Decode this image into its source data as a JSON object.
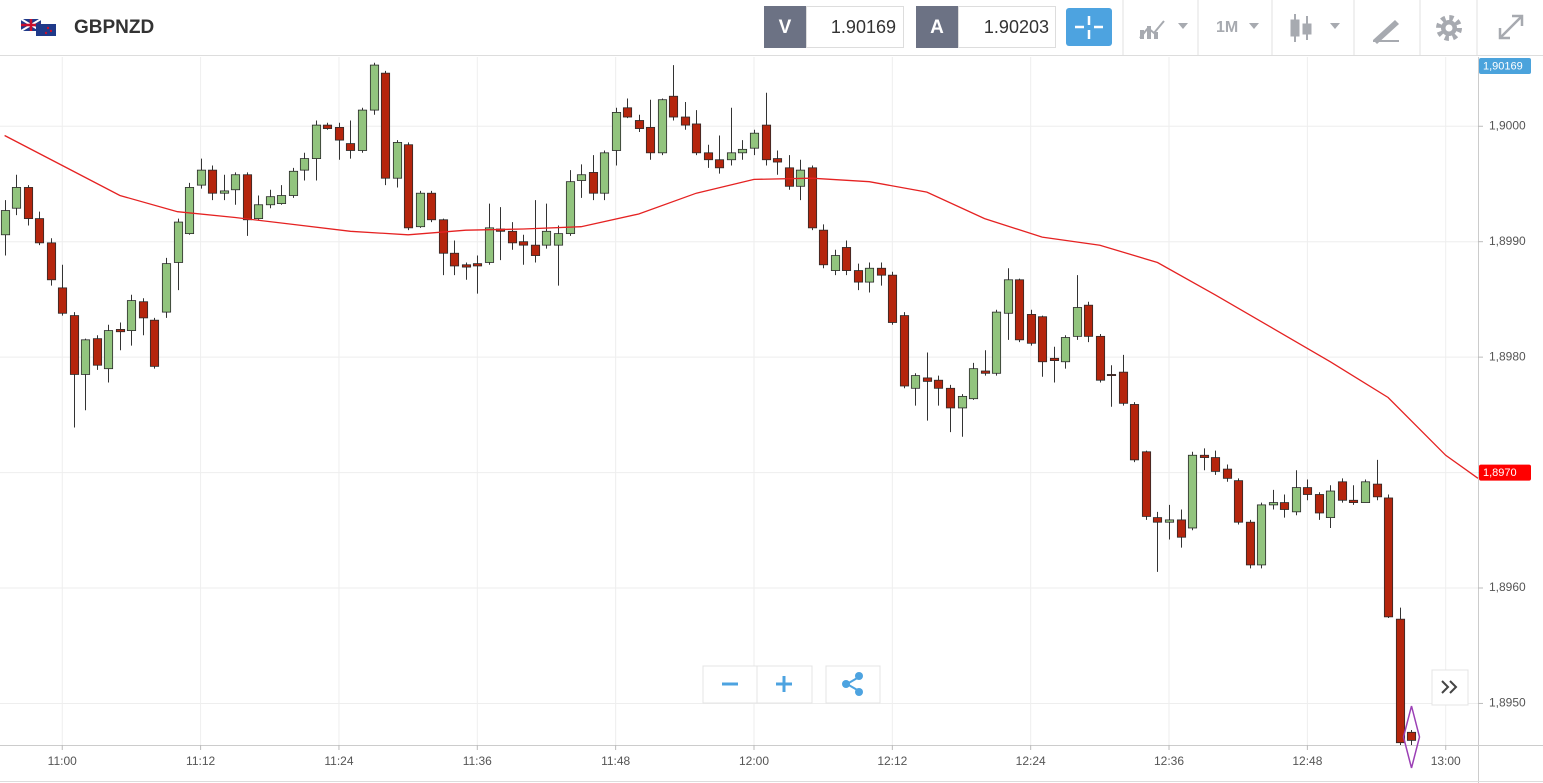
{
  "header": {
    "symbol": "GBPNZD",
    "bid_tag": "V",
    "bid": "1.90169",
    "ask_tag": "A",
    "ask": "1.90203",
    "timeframe": "1M"
  },
  "chart_data": {
    "type": "candlestick",
    "up_color": "#92c47e",
    "down_color": "#b5250d",
    "grid": true,
    "x": [
      655,
      656,
      657,
      658,
      659,
      660,
      661,
      662,
      663,
      664,
      665,
      666,
      667,
      668,
      669,
      670,
      671,
      672,
      673,
      674,
      675,
      676,
      677,
      678,
      679,
      680,
      681,
      682,
      683,
      684,
      685,
      686,
      687,
      688,
      689,
      690,
      691,
      692,
      693,
      694,
      695,
      696,
      697,
      698,
      699,
      700,
      701,
      702,
      703,
      704,
      705,
      706,
      707,
      708,
      709,
      710,
      711,
      712,
      713,
      714,
      715,
      716,
      717,
      718,
      719,
      720,
      721,
      722,
      723,
      724,
      725,
      726,
      727,
      728,
      729,
      730,
      731,
      732,
      733,
      734,
      735,
      736,
      737,
      738,
      739,
      740,
      741,
      742,
      743,
      744,
      745,
      746,
      747,
      748,
      749,
      750,
      751,
      752,
      753,
      754,
      755,
      756,
      757,
      758,
      759,
      760,
      761,
      762,
      763,
      764,
      765,
      766,
      767,
      768,
      769,
      770,
      771,
      772,
      773,
      774,
      775,
      776,
      777
    ],
    "open": [
      1.89906,
      1.89929,
      1.89947,
      1.8992,
      1.89899,
      1.8986,
      1.89836,
      1.89785,
      1.89816,
      1.8979,
      1.89824,
      1.89823,
      1.89848,
      1.89832,
      1.89839,
      1.89882,
      1.89907,
      1.89949,
      1.89962,
      1.89942,
      1.89945,
      1.89958,
      1.8992,
      1.89932,
      1.89933,
      1.8994,
      1.89962,
      1.89972,
      1.90001,
      1.89999,
      1.89985,
      1.89979,
      1.90014,
      1.90046,
      1.89955,
      1.89984,
      1.89913,
      1.89942,
      1.89919,
      1.8989,
      1.8988,
      1.89881,
      1.89882,
      1.89911,
      1.89909,
      1.899,
      1.89897,
      1.89897,
      1.89897,
      1.89907,
      1.89953,
      1.8996,
      1.89942,
      1.89979,
      1.90016,
      1.90005,
      1.89999,
      1.89977,
      1.90026,
      1.90008,
      1.90002,
      1.89977,
      1.89971,
      1.89971,
      1.89977,
      1.89981,
      1.90001,
      1.89972,
      1.89964,
      1.89948,
      1.89964,
      1.8991,
      1.89875,
      1.89895,
      1.89875,
      1.89865,
      1.89877,
      1.89871,
      1.89836,
      1.89773,
      1.89782,
      1.8978,
      1.89773,
      1.89756,
      1.89764,
      1.89788,
      1.89786,
      1.89838,
      1.89867,
      1.89837,
      1.89835,
      1.89799,
      1.89796,
      1.89818,
      1.89845,
      1.89818,
      1.89785,
      1.89787,
      1.89759,
      1.89718,
      1.89661,
      1.89657,
      1.89659,
      1.89652,
      1.89715,
      1.89713,
      1.89703,
      1.89693,
      1.89657,
      1.8962,
      1.89672,
      1.89674,
      1.89666,
      1.89687,
      1.89681,
      1.89661,
      1.89692,
      1.89676,
      1.89674,
      1.8969,
      1.89678,
      1.89573,
      1.89475
    ],
    "high": [
      1.89936,
      1.89958,
      1.89949,
      1.89926,
      1.89903,
      1.8988,
      1.89839,
      1.89816,
      1.89819,
      1.89828,
      1.8983,
      1.89854,
      1.89851,
      1.89834,
      1.89886,
      1.8992,
      1.89951,
      1.89972,
      1.89966,
      1.89958,
      1.8996,
      1.8996,
      1.8994,
      1.89945,
      1.89949,
      1.89964,
      1.89977,
      1.90005,
      1.90003,
      1.90003,
      1.90005,
      1.90016,
      1.90055,
      1.90048,
      1.89988,
      1.89986,
      1.89944,
      1.89944,
      1.8992,
      1.89901,
      1.89882,
      1.89888,
      1.89933,
      1.8993,
      1.89917,
      1.89906,
      1.89936,
      1.89933,
      1.89914,
      1.89962,
      1.89967,
      1.89975,
      1.89979,
      1.90016,
      1.90024,
      1.9001,
      1.90023,
      1.90024,
      1.90053,
      1.90021,
      1.90014,
      1.89984,
      1.89992,
      1.90016,
      1.89988,
      1.89997,
      1.90029,
      1.89979,
      1.89975,
      1.89971,
      1.89966,
      1.89915,
      1.89893,
      1.89901,
      1.89881,
      1.89882,
      1.89882,
      1.89874,
      1.89839,
      1.89786,
      1.89804,
      1.89784,
      1.89776,
      1.89768,
      1.89795,
      1.89806,
      1.89841,
      1.89877,
      1.89868,
      1.89841,
      1.89836,
      1.89809,
      1.89819,
      1.89871,
      1.89848,
      1.8982,
      1.89793,
      1.89802,
      1.89761,
      1.89719,
      1.89666,
      1.89672,
      1.89668,
      1.89718,
      1.89721,
      1.89719,
      1.89707,
      1.89695,
      1.89659,
      1.89674,
      1.89685,
      1.89681,
      1.89702,
      1.89694,
      1.89683,
      1.89689,
      1.89695,
      1.89689,
      1.89694,
      1.89711,
      1.89681,
      1.89583,
      1.89477
    ],
    "low": [
      1.89888,
      1.89923,
      1.89914,
      1.89897,
      1.89862,
      1.89836,
      1.89739,
      1.89754,
      1.89789,
      1.89778,
      1.89806,
      1.8981,
      1.89819,
      1.8979,
      1.89834,
      1.89858,
      1.89906,
      1.89946,
      1.89936,
      1.89936,
      1.89932,
      1.89905,
      1.89919,
      1.89929,
      1.89932,
      1.89938,
      1.89953,
      1.89953,
      1.89997,
      1.89971,
      1.89972,
      1.89977,
      1.9001,
      1.89949,
      1.89947,
      1.8991,
      1.89912,
      1.89917,
      1.89871,
      1.89871,
      1.89867,
      1.89855,
      1.8988,
      1.89884,
      1.89893,
      1.8988,
      1.89882,
      1.89894,
      1.89862,
      1.89905,
      1.89938,
      1.89936,
      1.89936,
      1.89966,
      1.90007,
      1.89995,
      1.89971,
      1.89975,
      1.90005,
      1.89997,
      1.89975,
      1.89964,
      1.89959,
      1.89966,
      1.89971,
      1.89975,
      1.89966,
      1.89958,
      1.89945,
      1.89936,
      1.8991,
      1.89877,
      1.89871,
      1.89871,
      1.89858,
      1.89856,
      1.89862,
      1.89828,
      1.89773,
      1.89758,
      1.89745,
      1.89758,
      1.89735,
      1.89731,
      1.89763,
      1.89784,
      1.89784,
      1.89815,
      1.89813,
      1.8981,
      1.89783,
      1.89778,
      1.8979,
      1.89815,
      1.89813,
      1.89778,
      1.89757,
      1.89758,
      1.89709,
      1.89659,
      1.89614,
      1.89642,
      1.89635,
      1.8965,
      1.89702,
      1.89698,
      1.89692,
      1.89655,
      1.89617,
      1.89617,
      1.89668,
      1.89661,
      1.89663,
      1.89676,
      1.89659,
      1.89652,
      1.89674,
      1.89672,
      1.89674,
      1.89676,
      1.89574,
      1.89464,
      1.89464
    ],
    "close": [
      1.89927,
      1.89947,
      1.8992,
      1.89899,
      1.89867,
      1.89838,
      1.89785,
      1.89815,
      1.89793,
      1.89823,
      1.89822,
      1.89849,
      1.89834,
      1.89792,
      1.89881,
      1.89917,
      1.89947,
      1.89962,
      1.89942,
      1.89944,
      1.89958,
      1.89919,
      1.89932,
      1.89939,
      1.8994,
      1.89961,
      1.89972,
      1.90001,
      1.89998,
      1.89988,
      1.89979,
      1.90014,
      1.90053,
      1.89955,
      1.89986,
      1.89912,
      1.89942,
      1.89919,
      1.8989,
      1.89879,
      1.89878,
      1.89879,
      1.89912,
      1.89909,
      1.89899,
      1.89897,
      1.89888,
      1.89909,
      1.89907,
      1.89952,
      1.89958,
      1.89942,
      1.89977,
      1.90012,
      1.90008,
      1.89998,
      1.89977,
      1.90023,
      1.90008,
      1.90001,
      1.89977,
      1.89971,
      1.89964,
      1.89977,
      1.8998,
      1.89994,
      1.89971,
      1.89969,
      1.89948,
      1.89962,
      1.89912,
      1.8988,
      1.89888,
      1.89875,
      1.89865,
      1.89877,
      1.89871,
      1.8983,
      1.89775,
      1.89784,
      1.89779,
      1.89773,
      1.89756,
      1.89766,
      1.8979,
      1.89786,
      1.89839,
      1.89867,
      1.89815,
      1.89812,
      1.89796,
      1.89797,
      1.89817,
      1.89843,
      1.89818,
      1.8978,
      1.89784,
      1.8976,
      1.89711,
      1.89662,
      1.89657,
      1.89659,
      1.89644,
      1.89715,
      1.89713,
      1.89701,
      1.89695,
      1.89657,
      1.8962,
      1.89672,
      1.89674,
      1.89668,
      1.89687,
      1.89681,
      1.89665,
      1.89684,
      1.89676,
      1.89674,
      1.89692,
      1.89679,
      1.89575,
      1.89466,
      1.89468
    ],
    "overlay": {
      "type": "line",
      "color": "#e52222",
      "x": [
        655,
        660,
        665,
        670,
        675,
        680,
        685,
        690,
        695,
        700,
        705,
        710,
        715,
        720,
        725,
        730,
        735,
        740,
        745,
        750,
        755,
        760,
        765,
        770,
        775,
        780,
        782.8
      ],
      "values": [
        1.89992,
        1.89966,
        1.8994,
        1.89926,
        1.89921,
        1.89915,
        1.89909,
        1.89906,
        1.8991,
        1.89911,
        1.89913,
        1.89924,
        1.89942,
        1.89954,
        1.89955,
        1.89952,
        1.89943,
        1.8992,
        1.89904,
        1.89897,
        1.89882,
        1.89854,
        1.89825,
        1.89796,
        1.89765,
        1.89715,
        1.89695
      ]
    },
    "price_tags": [
      {
        "value": 1.90169,
        "label": "1,90169",
        "color": "#4ba3dc"
      },
      {
        "value": 1.897,
        "label": "1,8970",
        "color": "#ff0000"
      }
    ],
    "xlim": [
      654.6,
      782.8
    ],
    "ylim": [
      1.89464,
      1.9006
    ],
    "xticks": [
      {
        "value": 660,
        "label": "11:00"
      },
      {
        "value": 672,
        "label": "11:12"
      },
      {
        "value": 684,
        "label": "11:24"
      },
      {
        "value": 696,
        "label": "11:36"
      },
      {
        "value": 708,
        "label": "11:48"
      },
      {
        "value": 720,
        "label": "12:00"
      },
      {
        "value": 732,
        "label": "12:12"
      },
      {
        "value": 744,
        "label": "12:24"
      },
      {
        "value": 756,
        "label": "12:36"
      },
      {
        "value": 768,
        "label": "12:48"
      },
      {
        "value": 780,
        "label": "13:00"
      }
    ],
    "yticks": [
      {
        "value": 1.895,
        "label": "1,8950"
      },
      {
        "value": 1.896,
        "label": "1,8960"
      },
      {
        "value": 1.897,
        "label": "1,8970"
      },
      {
        "value": 1.898,
        "label": "1,8980"
      },
      {
        "value": 1.899,
        "label": "1,8990"
      },
      {
        "value": 1.9,
        "label": "1,9000"
      }
    ]
  }
}
